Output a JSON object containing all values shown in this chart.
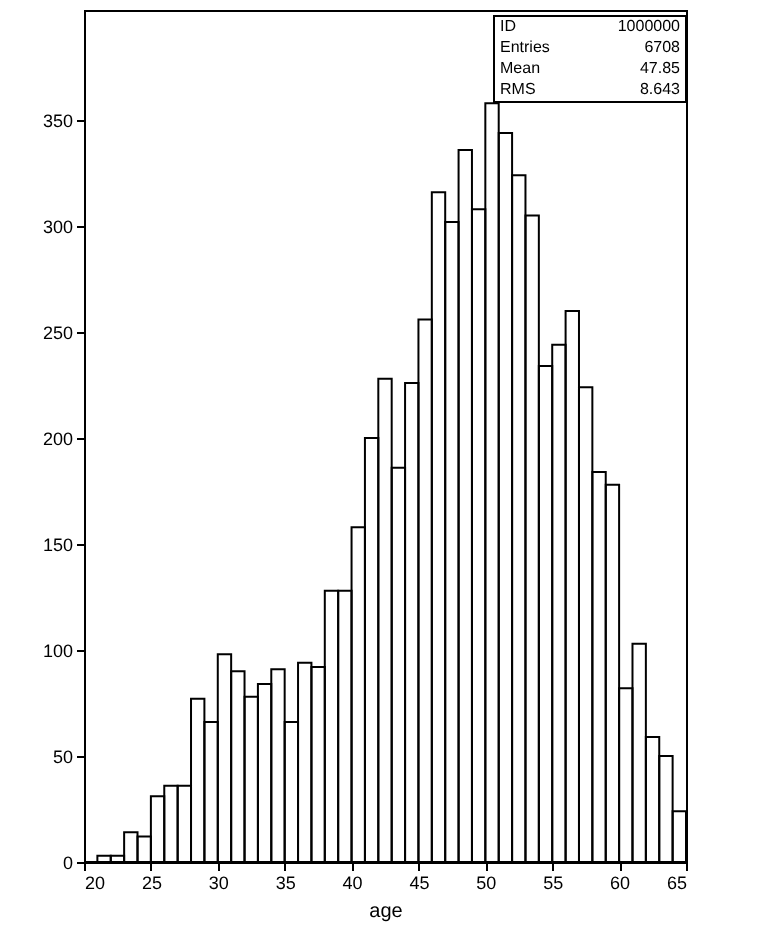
{
  "chart_data": {
    "type": "histogram",
    "xlabel": "age",
    "bins": [
      20,
      21,
      22,
      23,
      24,
      25,
      26,
      27,
      28,
      29,
      30,
      31,
      32,
      33,
      34,
      35,
      36,
      37,
      38,
      39,
      40,
      41,
      42,
      43,
      44,
      45,
      46,
      47,
      48,
      49,
      50,
      51,
      52,
      53,
      54,
      55,
      56,
      57,
      58,
      59,
      60,
      61,
      62,
      63,
      64,
      65
    ],
    "values": [
      0,
      3,
      3,
      14,
      12,
      31,
      36,
      36,
      77,
      66,
      98,
      90,
      78,
      84,
      91,
      66,
      94,
      92,
      128,
      128,
      158,
      200,
      228,
      186,
      226,
      256,
      316,
      302,
      336,
      308,
      358,
      344,
      324,
      305,
      234,
      244,
      260,
      224,
      184,
      178,
      82,
      103,
      59,
      50,
      24
    ],
    "color": "#000000",
    "xlim": [
      20,
      65
    ],
    "ylim": [
      0,
      402
    ],
    "xticks": [
      20,
      25,
      30,
      35,
      40,
      45,
      50,
      55,
      60,
      65
    ],
    "yticks": [
      0,
      50,
      100,
      150,
      200,
      250,
      300,
      350
    ],
    "grid": false,
    "annotations": [
      "ID 1000000",
      "Entries 6708",
      "Mean 47.85",
      "RMS 8.643"
    ]
  }
}
